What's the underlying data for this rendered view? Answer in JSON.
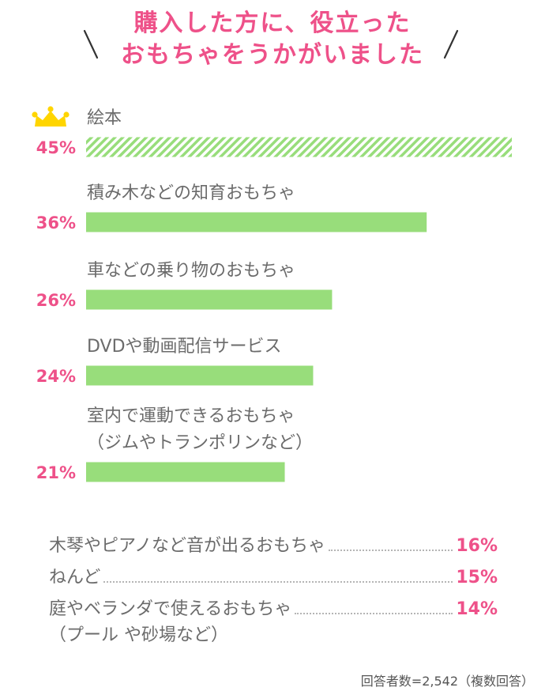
{
  "title": {
    "line1": "購入した方に、役立った",
    "line2": "おもちゃをうかがいました"
  },
  "colors": {
    "accent": "#ee5189",
    "bar": "#98dd7b",
    "crown": "#ffd500",
    "text": "#6b6b6b"
  },
  "chart_data": {
    "type": "bar",
    "orientation": "horizontal",
    "xlim": [
      0,
      45
    ],
    "categories": [
      [
        "絵本"
      ],
      [
        "積み木などの知育おもちゃ"
      ],
      [
        "車などの乗り物のおもちゃ"
      ],
      [
        "DVDや動画配信サービス"
      ],
      [
        "室内で運動できるおもちゃ",
        "（ジムやトランポリンなど）"
      ]
    ],
    "values": [
      45,
      36,
      26,
      24,
      21
    ],
    "value_labels": [
      "45%",
      "36%",
      "26%",
      "24%",
      "21%"
    ],
    "highlight_first": true,
    "highlight_icon": "crown-icon"
  },
  "others": [
    {
      "label": "木琴やピアノなど音が出るおもちゃ",
      "value": "16%"
    },
    {
      "label": "ねんど",
      "value": "15%"
    },
    {
      "label": "庭やベランダで使えるおもちゃ",
      "sub": "（プール や砂場など）",
      "value": "14%"
    }
  ],
  "footnote": "回答者数=2,542（複数回答）"
}
